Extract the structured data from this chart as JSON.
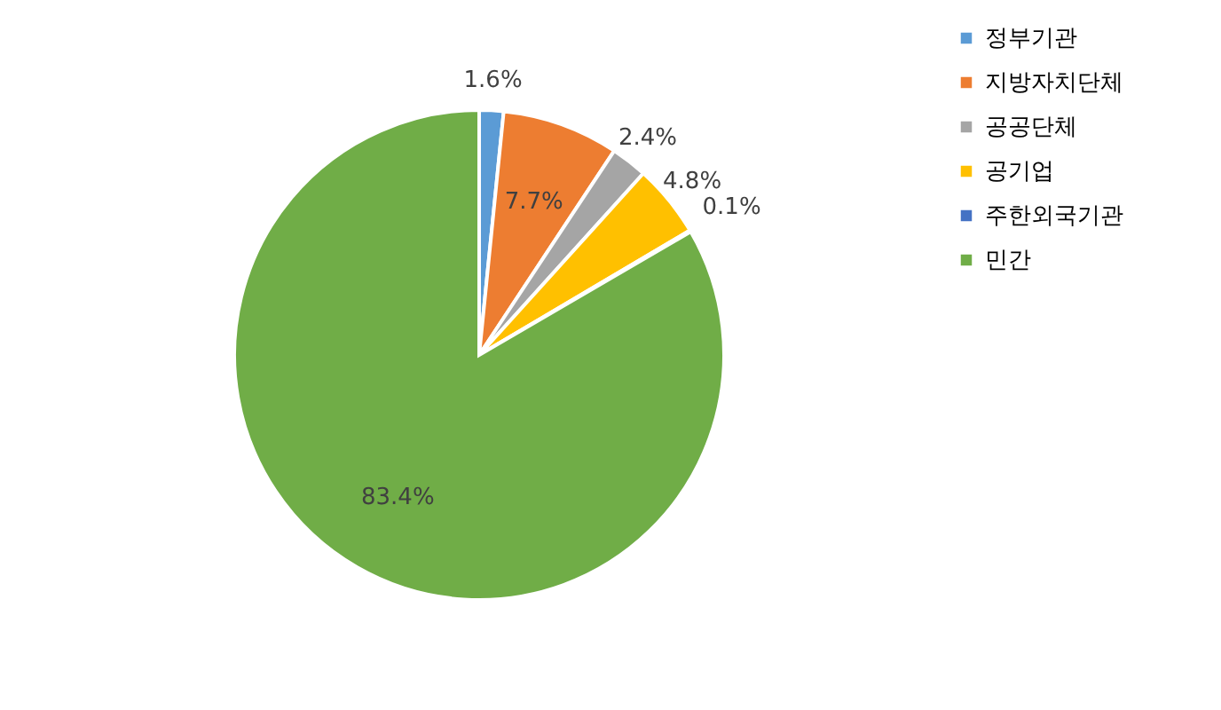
{
  "chart_data": {
    "type": "pie",
    "categories": [
      "정부기관",
      "지방자치단체",
      "공공단체",
      "공기업",
      "주한외국기관",
      "민간"
    ],
    "values": [
      1.6,
      7.7,
      2.4,
      4.8,
      0.1,
      83.4
    ],
    "colors": [
      "#5b9bd5",
      "#ed7d31",
      "#a5a5a5",
      "#ffc000",
      "#4472c4",
      "#70ad47"
    ],
    "value_labels": [
      "1.6%",
      "7.7%",
      "2.4%",
      "4.8%",
      "0.1%",
      "83.4%"
    ],
    "legend": "right"
  }
}
